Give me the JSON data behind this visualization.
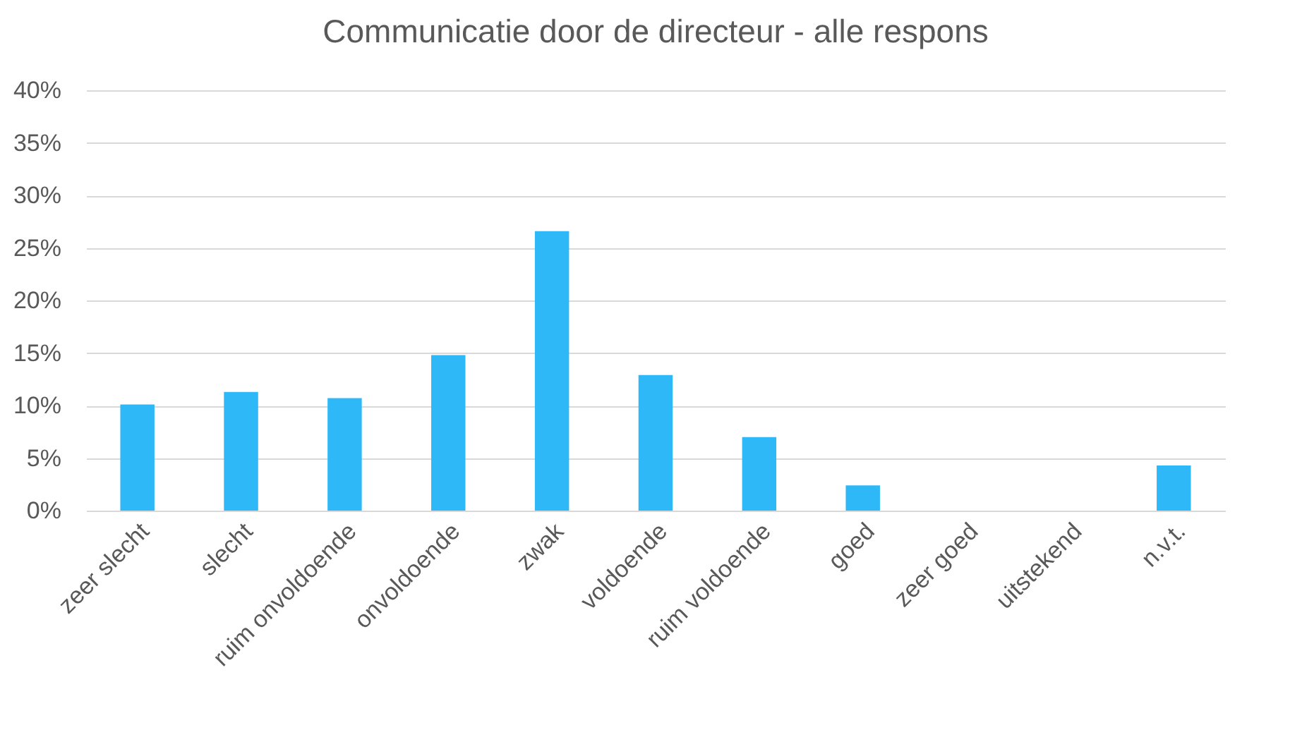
{
  "chart_data": {
    "type": "bar",
    "title": "Communicatie door de directeur - alle respons",
    "categories": [
      "zeer slecht",
      "slecht",
      "ruim onvoldoende",
      "onvoldoende",
      "zwak",
      "voldoende",
      "ruim voldoende",
      "goed",
      "zeer goed",
      "uitstekend",
      "n.v.t."
    ],
    "values": [
      10.1,
      11.3,
      10.7,
      14.8,
      26.6,
      12.9,
      7.0,
      2.4,
      0,
      0,
      4.3
    ],
    "color": "#2eb8f8",
    "ylim": [
      0,
      40
    ],
    "yticks": [
      {
        "value": 0,
        "label": "0%"
      },
      {
        "value": 5,
        "label": "5%"
      },
      {
        "value": 10,
        "label": "10%"
      },
      {
        "value": 15,
        "label": "15%"
      },
      {
        "value": 20,
        "label": "20%"
      },
      {
        "value": 25,
        "label": "25%"
      },
      {
        "value": 30,
        "label": "30%"
      },
      {
        "value": 35,
        "label": "35%"
      },
      {
        "value": 40,
        "label": "40%"
      }
    ],
    "grid": "y"
  }
}
